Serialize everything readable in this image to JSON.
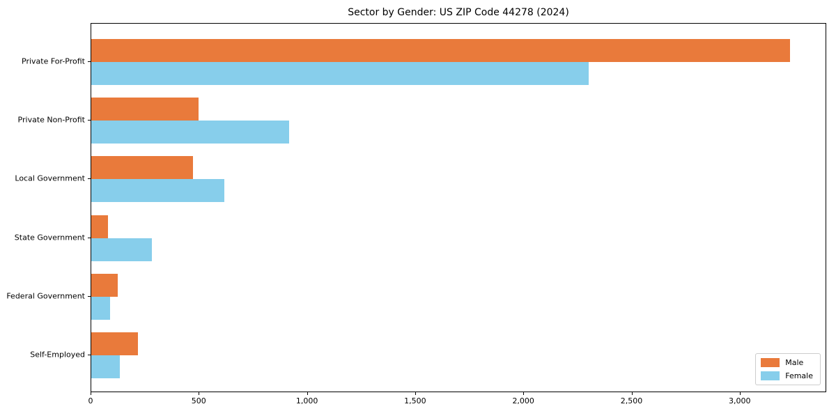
{
  "chart_data": {
    "type": "bar",
    "orientation": "horizontal",
    "title": "Sector by Gender: US ZIP Code 44278 (2024)",
    "categories": [
      "Private For-Profit",
      "Private Non-Profit",
      "Local Government",
      "State Government",
      "Federal Government",
      "Self-Employed"
    ],
    "series": [
      {
        "name": "Male",
        "color": "#e97a3b",
        "values": [
          3230,
          495,
          470,
          77,
          122,
          215
        ]
      },
      {
        "name": "Female",
        "color": "#87ceeb",
        "values": [
          2300,
          915,
          615,
          280,
          87,
          132
        ]
      }
    ],
    "xlabel": "",
    "ylabel": "",
    "xlim": [
      0,
      3400
    ],
    "xticks": [
      {
        "value": 0,
        "label": "0"
      },
      {
        "value": 500,
        "label": "500"
      },
      {
        "value": 1000,
        "label": "1,000"
      },
      {
        "value": 1500,
        "label": "1,500"
      },
      {
        "value": 2000,
        "label": "2,000"
      },
      {
        "value": 2500,
        "label": "2,500"
      },
      {
        "value": 3000,
        "label": "3,000"
      }
    ],
    "grid": false,
    "legend_position": "lower right"
  }
}
